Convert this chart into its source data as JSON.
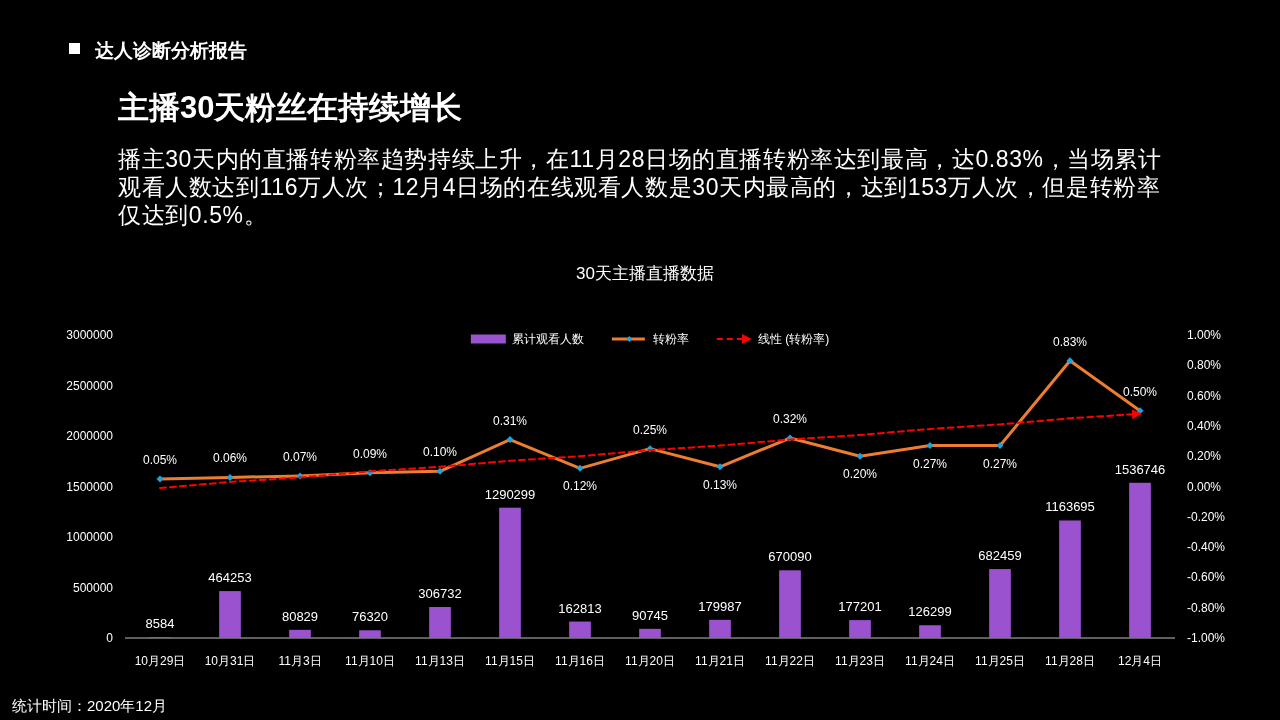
{
  "chart_data": {
    "type": "bar",
    "title": "30天主播直播数据",
    "annotations": [
      "达人诊断分析报告",
      "主播30天粉丝在持续增长",
      "播主30天内的直播转粉率趋势持续上升，在11月28日场的直播转粉率达到最高，达0.83%，当场累计观看人数达到116万人次；12月4日场的在线观看人数是30天内最高的，达到153万人次，但是转粉率仅达到0.5%。",
      "统计时间：2020年12月"
    ],
    "categories": [
      "10月29日",
      "10月31日",
      "11月3日",
      "11月10日",
      "11月13日",
      "11月15日",
      "11月16日",
      "11月20日",
      "11月21日",
      "11月22日",
      "11月23日",
      "11月24日",
      "11月25日",
      "11月28日",
      "12月4日"
    ],
    "series": [
      {
        "name": "累计观看人数",
        "color": "#9a52cf",
        "values": [
          8584,
          464253,
          80829,
          76320,
          306732,
          1290299,
          162813,
          90745,
          179987,
          670090,
          177201,
          126299,
          682459,
          1163695,
          1536746
        ],
        "value_labels": [
          "8584",
          "464253",
          "80829",
          "76320",
          "306732",
          "1290299",
          "162813",
          "90745",
          "179987",
          "670090",
          "177201",
          "126299",
          "682459",
          "1163695",
          "1536746"
        ]
      },
      {
        "name": "转粉率",
        "type": "line",
        "axis": "y2",
        "color": "#ed7d31",
        "marker": "diamond",
        "values": [
          0.05,
          0.06,
          0.07,
          0.09,
          0.1,
          0.31,
          0.12,
          0.25,
          0.13,
          0.32,
          0.2,
          0.27,
          0.27,
          0.83,
          0.5
        ],
        "value_labels": [
          "0.05%",
          "0.06%",
          "0.07%",
          "0.09%",
          "0.10%",
          "0.31%",
          "0.12%",
          "0.25%",
          "0.13%",
          "0.32%",
          "0.20%",
          "0.27%",
          "0.27%",
          "0.83%",
          "0.50%"
        ]
      },
      {
        "name": "线性 (转粉率)",
        "type": "line",
        "axis": "y2",
        "color": "#ff0000",
        "line_style": "dashed",
        "values": [
          -0.01,
          0.03,
          0.06,
          0.1,
          0.13,
          0.17,
          0.2,
          0.24,
          0.27,
          0.31,
          0.34,
          0.38,
          0.41,
          0.45,
          0.48
        ]
      }
    ],
    "ylim": [
      0,
      3000000
    ],
    "yticks": [
      0,
      500000,
      1000000,
      1500000,
      2000000,
      2500000,
      3000000
    ],
    "y2lim": [
      -1,
      1
    ],
    "y2ticks": [
      {
        "value": -1,
        "label": "-1.00%"
      },
      {
        "value": -0.8,
        "label": "-0.80%"
      },
      {
        "value": -0.6,
        "label": "-0.60%"
      },
      {
        "value": -0.4,
        "label": "-0.40%"
      },
      {
        "value": -0.2,
        "label": "-0.20%"
      },
      {
        "value": 0,
        "label": "0.00%"
      },
      {
        "value": 0.2,
        "label": "0.20%"
      },
      {
        "value": 0.4,
        "label": "0.40%"
      },
      {
        "value": 0.6,
        "label": "0.60%"
      },
      {
        "value": 0.8,
        "label": "0.80%"
      },
      {
        "value": 1,
        "label": "1.00%"
      }
    ],
    "legend": "top"
  }
}
